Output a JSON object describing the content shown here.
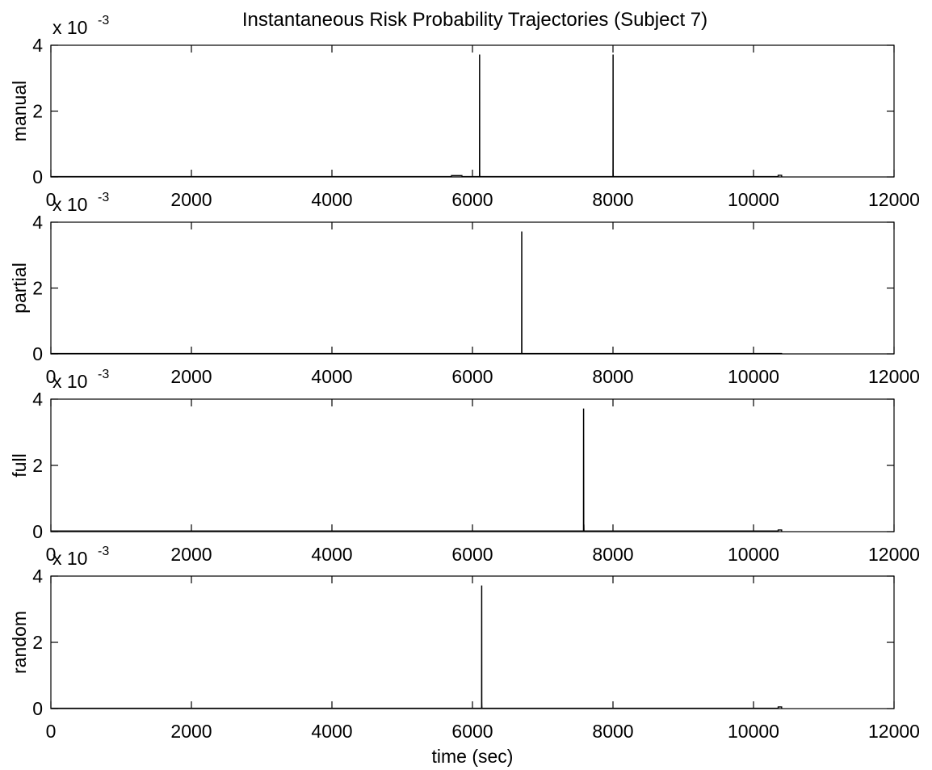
{
  "chart_data": {
    "type": "line",
    "title": "Instantaneous Risk Probability Trajectories (Subject 7)",
    "xlabel": "time (sec)",
    "xlim": [
      0,
      12000
    ],
    "xticks": [
      "0",
      "2000",
      "4000",
      "6000",
      "8000",
      "10000",
      "12000"
    ],
    "ylim": [
      0,
      0.004
    ],
    "yticks": [
      "0",
      "2",
      "4"
    ],
    "y_exponent": {
      "base": "x 10",
      "power": "-3"
    },
    "grid": false,
    "subplots": [
      {
        "ylabel": "manual",
        "series": [
          {
            "x": [
              0,
              5700,
              5701,
              5850,
              5851,
              6100,
              6101,
              6102,
              6103,
              6104,
              8000,
              8001,
              8002,
              8003,
              8004,
              10350,
              10351,
              10400,
              10401
            ],
            "y": [
              1e-05,
              1e-05,
              4e-05,
              4e-05,
              1e-05,
              1e-05,
              0.0037,
              0.0037,
              0.0002,
              1e-05,
              1e-05,
              0.0037,
              0.0037,
              0.0002,
              1e-05,
              1e-05,
              5e-05,
              5e-05,
              0
            ]
          }
        ]
      },
      {
        "ylabel": "partial",
        "series": [
          {
            "x": [
              0,
              6700,
              6701,
              6702,
              6703,
              10400,
              10401
            ],
            "y": [
              1e-05,
              1e-05,
              0.0037,
              0.0037,
              1e-05,
              1e-05,
              0
            ]
          }
        ]
      },
      {
        "ylabel": "full",
        "series": [
          {
            "x": [
              0,
              7580,
              7581,
              7582,
              7584,
              7585,
              7586,
              7587,
              7588,
              10350,
              10351,
              10400,
              10401
            ],
            "y": [
              2e-05,
              2e-05,
              0.0037,
              0.0037,
              0.0002,
              0.0002,
              0.0002,
              5e-05,
              2e-05,
              2e-05,
              5e-05,
              5e-05,
              0
            ]
          }
        ]
      },
      {
        "ylabel": "random",
        "series": [
          {
            "x": [
              0,
              6130,
              6131,
              6132,
              6133,
              6134,
              6135,
              10350,
              10351,
              10400,
              10401
            ],
            "y": [
              1e-05,
              1e-05,
              0.0037,
              0.0037,
              0.0002,
              5e-05,
              1e-05,
              1e-05,
              5e-05,
              5e-05,
              0
            ]
          }
        ]
      }
    ],
    "colors": {
      "line": "#000000",
      "axes": "#000000",
      "background": "#ffffff"
    }
  }
}
